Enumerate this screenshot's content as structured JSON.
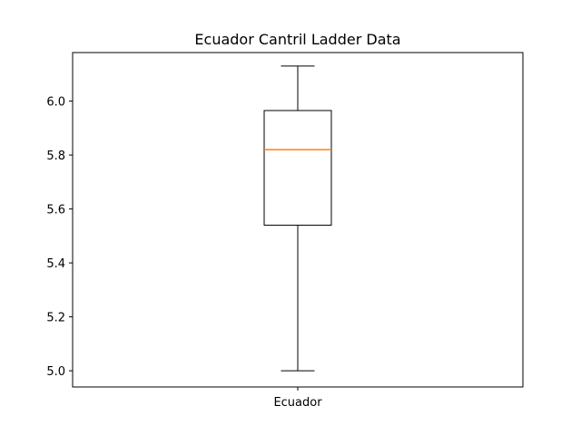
{
  "chart_data": {
    "type": "box",
    "title": "Ecuador Cantril Ladder Data",
    "xlabel": "",
    "ylabel": "",
    "categories": [
      "Ecuador"
    ],
    "boxes": [
      {
        "category": "Ecuador",
        "whisker_low": 5.0,
        "q1": 5.54,
        "median": 5.82,
        "q3": 5.965,
        "whisker_high": 6.13
      }
    ],
    "ylim": [
      4.94,
      6.18
    ],
    "yticks": [
      "5.0",
      "5.2",
      "5.4",
      "5.6",
      "5.8",
      "6.0"
    ],
    "grid": false,
    "colors": {
      "box": "#000000",
      "median": "#ff7f0e",
      "axes": "#000000"
    }
  }
}
